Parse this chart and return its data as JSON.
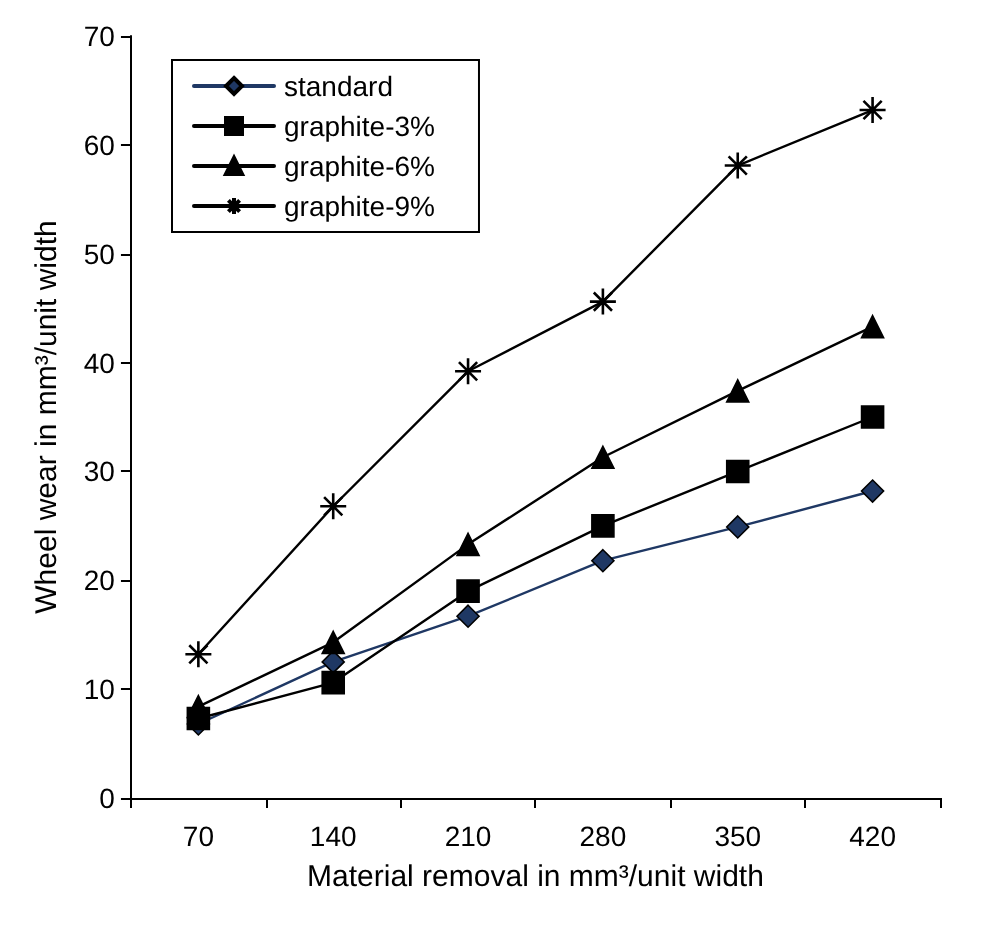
{
  "chart_data": {
    "type": "line",
    "xlabel": "Material removal in mm³/unit width",
    "ylabel": "Wheel wear in mm³/unit width",
    "categories": [
      "70",
      "140",
      "210",
      "280",
      "350",
      "420"
    ],
    "ylim": [
      0,
      70
    ],
    "yticks": [
      0,
      10,
      20,
      30,
      40,
      50,
      60,
      70
    ],
    "grid": false,
    "legend": "top left",
    "line_style": "solid",
    "series": [
      {
        "name": "standard",
        "color": "#1f3864",
        "marker": "diamond",
        "values": [
          6.8,
          12.5,
          16.7,
          21.8,
          24.9,
          28.2
        ]
      },
      {
        "name": "graphite-3%",
        "color": "#000000",
        "marker": "square",
        "values": [
          7.3,
          10.6,
          19,
          25,
          30,
          35
        ]
      },
      {
        "name": "graphite-6%",
        "color": "#000000",
        "marker": "triangle",
        "values": [
          8.4,
          14.3,
          23.3,
          31.3,
          37.4,
          43.3
        ]
      },
      {
        "name": "graphite-9%",
        "color": "#000000",
        "marker": "cross",
        "values": [
          13.2,
          26.8,
          39.2,
          45.6,
          58.1,
          63.2
        ]
      }
    ]
  }
}
